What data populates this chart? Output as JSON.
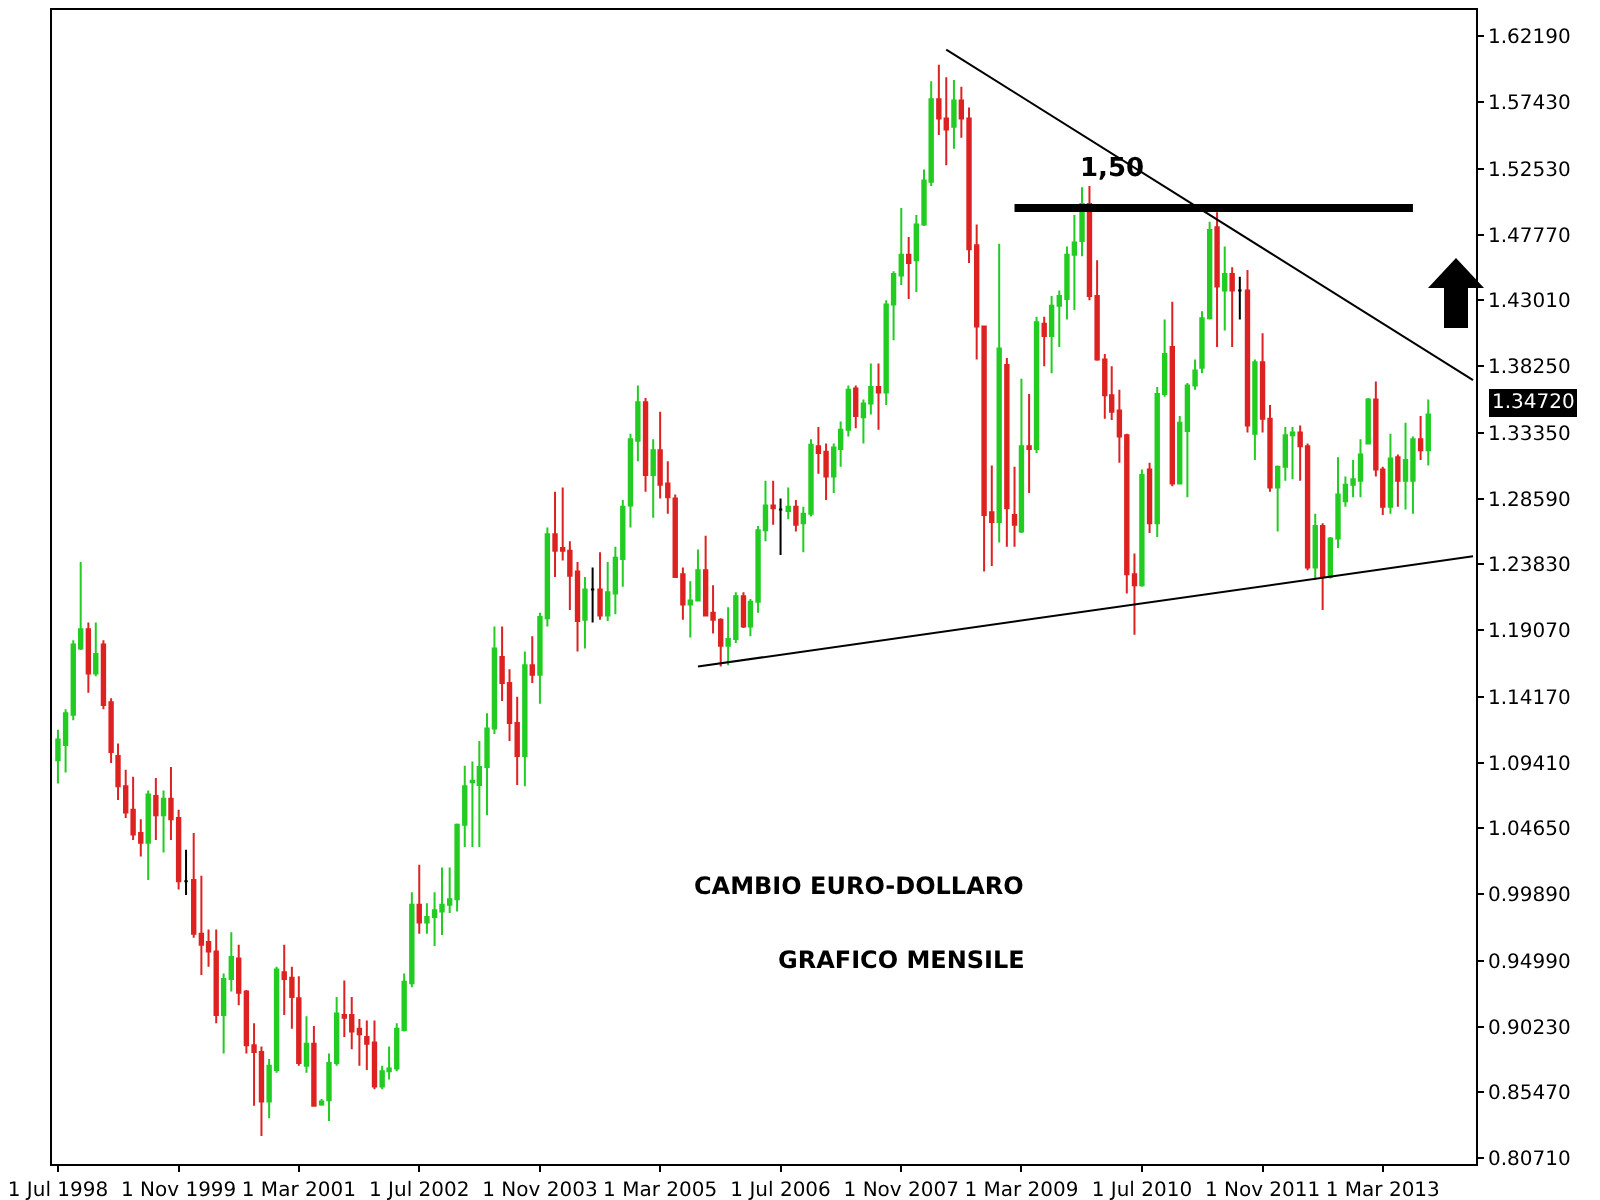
{
  "chart_data": {
    "type": "candlestick",
    "colors": [
      "#22cc22",
      "#22cc22",
      "#22cc22",
      "#22cc22",
      "#dd2222",
      "#22cc22",
      "#dd2222",
      "#dd2222",
      "#dd2222",
      "#dd2222",
      "#dd2222",
      "#dd2222",
      "#22cc22",
      "#dd2222",
      "#22cc22",
      "#dd2222",
      "#dd2222",
      "#000000",
      "#dd2222",
      "#dd2222",
      "#dd2222",
      "#dd2222",
      "#22cc22",
      "#22cc22",
      "#dd2222",
      "#dd2222",
      "#dd2222",
      "#dd2222",
      "#22cc22",
      "#22cc22",
      "#dd2222",
      "#dd2222",
      "#dd2222",
      "#22cc22",
      "#dd2222",
      "#22cc22",
      "#22cc22",
      "#22cc22",
      "#dd2222",
      "#dd2222",
      "#dd2222",
      "#dd2222",
      "#dd2222",
      "#22cc22",
      "#22cc22",
      "#22cc22",
      "#22cc22",
      "#22cc22",
      "#dd2222",
      "#22cc22",
      "#22cc22",
      "#22cc22",
      "#22cc22",
      "#22cc22",
      "#22cc22",
      "#22cc22",
      "#22cc22",
      "#22cc22",
      "#22cc22",
      "#dd2222",
      "#dd2222",
      "#dd2222",
      "#22cc22",
      "#dd2222",
      "#22cc22",
      "#22cc22",
      "#dd2222",
      "#dd2222",
      "#dd2222",
      "#dd2222",
      "#22cc22",
      "#000000",
      "#dd2222",
      "#22cc22",
      "#22cc22",
      "#22cc22",
      "#22cc22",
      "#22cc22",
      "#dd2222",
      "#22cc22",
      "#dd2222",
      "#dd2222",
      "#dd2222",
      "#dd2222",
      "#22cc22",
      "#22cc22",
      "#dd2222",
      "#dd2222",
      "#dd2222",
      "#22cc22",
      "#22cc22",
      "#dd2222",
      "#22cc22",
      "#22cc22",
      "#22cc22",
      "#dd2222",
      "#000000",
      "#22cc22",
      "#dd2222",
      "#22cc22",
      "#22cc22",
      "#dd2222",
      "#dd2222",
      "#22cc22",
      "#22cc22",
      "#22cc22",
      "#dd2222",
      "#22cc22",
      "#22cc22",
      "#dd2222",
      "#22cc22",
      "#22cc22",
      "#22cc22",
      "#dd2222",
      "#22cc22",
      "#22cc22",
      "#22cc22",
      "#dd2222",
      "#dd2222",
      "#22cc22",
      "#dd2222",
      "#dd2222",
      "#dd2222",
      "#dd2222",
      "#dd2222",
      "#22cc22",
      "#dd2222",
      "#dd2222",
      "#22cc22",
      "#dd2222",
      "#22cc22",
      "#dd2222",
      "#22cc22",
      "#22cc22",
      "#22cc22",
      "#22cc22",
      "#22cc22",
      "#dd2222",
      "#dd2222",
      "#dd2222",
      "#dd2222",
      "#dd2222",
      "#dd2222",
      "#dd2222",
      "#22cc22",
      "#dd2222",
      "#22cc22",
      "#22cc22",
      "#dd2222",
      "#22cc22",
      "#22cc22",
      "#22cc22",
      "#22cc22",
      "#22cc22",
      "#dd2222",
      "#22cc22",
      "#dd2222",
      "#000000",
      "#dd2222",
      "#22cc22",
      "#dd2222",
      "#dd2222",
      "#22cc22",
      "#22cc22",
      "#22cc22",
      "#dd2222",
      "#dd2222",
      "#22cc22",
      "#dd2222",
      "#22cc22",
      "#22cc22",
      "#22cc22",
      "#22cc22",
      "#22cc22",
      "#22cc22",
      "#dd2222",
      "#dd2222",
      "#22cc22",
      "#dd2222",
      "#22cc22",
      "#22cc22",
      "#dd2222",
      "#22cc22"
    ],
    "x": [
      "1998-07",
      "1998-08",
      "1998-09",
      "1998-10",
      "1998-11",
      "1998-12",
      "1999-01",
      "1999-02",
      "1999-03",
      "1999-04",
      "1999-05",
      "1999-06",
      "1999-07",
      "1999-08",
      "1999-09",
      "1999-10",
      "1999-11",
      "1999-12",
      "2000-01",
      "2000-02",
      "2000-03",
      "2000-04",
      "2000-05",
      "2000-06",
      "2000-07",
      "2000-08",
      "2000-09",
      "2000-10",
      "2000-11",
      "2000-12",
      "2001-01",
      "2001-02",
      "2001-03",
      "2001-04",
      "2001-05",
      "2001-06",
      "2001-07",
      "2001-08",
      "2001-09",
      "2001-10",
      "2001-11",
      "2001-12",
      "2002-01",
      "2002-02",
      "2002-03",
      "2002-04",
      "2002-05",
      "2002-06",
      "2002-07",
      "2002-08",
      "2002-09",
      "2002-10",
      "2002-11",
      "2002-12",
      "2003-01",
      "2003-02",
      "2003-03",
      "2003-04",
      "2003-05",
      "2003-06",
      "2003-07",
      "2003-08",
      "2003-09",
      "2003-10",
      "2003-11",
      "2003-12",
      "2004-01",
      "2004-02",
      "2004-03",
      "2004-04",
      "2004-05",
      "2004-06",
      "2004-07",
      "2004-08",
      "2004-09",
      "2004-10",
      "2004-11",
      "2004-12",
      "2005-01",
      "2005-02",
      "2005-03",
      "2005-04",
      "2005-05",
      "2005-06",
      "2005-07",
      "2005-08",
      "2005-09",
      "2005-10",
      "2005-11",
      "2005-12",
      "2006-01",
      "2006-02",
      "2006-03",
      "2006-04",
      "2006-05",
      "2006-06",
      "2006-07",
      "2006-08",
      "2006-09",
      "2006-10",
      "2006-11",
      "2006-12",
      "2007-01",
      "2007-02",
      "2007-03",
      "2007-04",
      "2007-05",
      "2007-06",
      "2007-07",
      "2007-08",
      "2007-09",
      "2007-10",
      "2007-11",
      "2007-12",
      "2008-01",
      "2008-02",
      "2008-03",
      "2008-04",
      "2008-05",
      "2008-06",
      "2008-07",
      "2008-08",
      "2008-09",
      "2008-10",
      "2008-11",
      "2008-12",
      "2009-01",
      "2009-02",
      "2009-03",
      "2009-04",
      "2009-05",
      "2009-06",
      "2009-07",
      "2009-08",
      "2009-09",
      "2009-10",
      "2009-11",
      "2009-12",
      "2010-01",
      "2010-02",
      "2010-03",
      "2010-04",
      "2010-05",
      "2010-06",
      "2010-07",
      "2010-08",
      "2010-09",
      "2010-10",
      "2010-11",
      "2010-12",
      "2011-01",
      "2011-02",
      "2011-03",
      "2011-04",
      "2011-05",
      "2011-06",
      "2011-07",
      "2011-08",
      "2011-09",
      "2011-10",
      "2011-11",
      "2011-12",
      "2012-01",
      "2012-02",
      "2012-03",
      "2012-04",
      "2012-05",
      "2012-06",
      "2012-07",
      "2012-08",
      "2012-09",
      "2012-10",
      "2012-11",
      "2012-12",
      "2013-01",
      "2013-02",
      "2013-03",
      "2013-04",
      "2013-05",
      "2013-06",
      "2013-07",
      "2013-08",
      "2013-09"
    ],
    "ohlc": [
      [
        1.096,
        1.118,
        1.079,
        1.111
      ],
      [
        1.107,
        1.133,
        1.087,
        1.13
      ],
      [
        1.129,
        1.183,
        1.125,
        1.18
      ],
      [
        1.177,
        1.24,
        1.176,
        1.191
      ],
      [
        1.191,
        1.196,
        1.145,
        1.159
      ],
      [
        1.159,
        1.196,
        1.157,
        1.173
      ],
      [
        1.18,
        1.183,
        1.133,
        1.136
      ],
      [
        1.138,
        1.141,
        1.094,
        1.102
      ],
      [
        1.099,
        1.108,
        1.067,
        1.077
      ],
      [
        1.077,
        1.089,
        1.054,
        1.058
      ],
      [
        1.06,
        1.084,
        1.038,
        1.042
      ],
      [
        1.043,
        1.053,
        1.026,
        1.036
      ],
      [
        1.036,
        1.074,
        1.009,
        1.071
      ],
      [
        1.07,
        1.083,
        1.038,
        1.056
      ],
      [
        1.056,
        1.074,
        1.029,
        1.068
      ],
      [
        1.068,
        1.091,
        1.038,
        1.053
      ],
      [
        1.054,
        1.06,
        1.002,
        1.008
      ],
      [
        1.008,
        1.031,
        0.998,
        1.008
      ],
      [
        1.009,
        1.043,
        0.967,
        0.97
      ],
      [
        0.97,
        1.012,
        0.94,
        0.962
      ],
      [
        0.964,
        0.973,
        0.946,
        0.957
      ],
      [
        0.957,
        0.973,
        0.905,
        0.911
      ],
      [
        0.911,
        0.941,
        0.883,
        0.937
      ],
      [
        0.937,
        0.971,
        0.928,
        0.953
      ],
      [
        0.952,
        0.962,
        0.918,
        0.927
      ],
      [
        0.928,
        0.929,
        0.883,
        0.889
      ],
      [
        0.889,
        0.905,
        0.845,
        0.884
      ],
      [
        0.884,
        0.888,
        0.823,
        0.848
      ],
      [
        0.848,
        0.879,
        0.836,
        0.874
      ],
      [
        0.871,
        0.946,
        0.869,
        0.944
      ],
      [
        0.942,
        0.962,
        0.911,
        0.937
      ],
      [
        0.938,
        0.946,
        0.901,
        0.924
      ],
      [
        0.923,
        0.939,
        0.874,
        0.876
      ],
      [
        0.874,
        0.91,
        0.869,
        0.89
      ],
      [
        0.89,
        0.903,
        0.845,
        0.845
      ],
      [
        0.846,
        0.85,
        0.845,
        0.848
      ],
      [
        0.849,
        0.883,
        0.834,
        0.876
      ],
      [
        0.876,
        0.924,
        0.874,
        0.912
      ],
      [
        0.911,
        0.936,
        0.895,
        0.909
      ],
      [
        0.911,
        0.924,
        0.886,
        0.899
      ],
      [
        0.901,
        0.908,
        0.874,
        0.897
      ],
      [
        0.895,
        0.907,
        0.871,
        0.89
      ],
      [
        0.891,
        0.907,
        0.857,
        0.859
      ],
      [
        0.859,
        0.874,
        0.857,
        0.87
      ],
      [
        0.87,
        0.888,
        0.864,
        0.872
      ],
      [
        0.872,
        0.905,
        0.87,
        0.901
      ],
      [
        0.9,
        0.941,
        0.899,
        0.935
      ],
      [
        0.934,
        1.0,
        0.931,
        0.991
      ],
      [
        0.991,
        1.02,
        0.97,
        0.978
      ],
      [
        0.978,
        0.992,
        0.97,
        0.982
      ],
      [
        0.982,
        1.0,
        0.961,
        0.987
      ],
      [
        0.986,
        1.018,
        0.969,
        0.991
      ],
      [
        0.991,
        1.018,
        0.985,
        0.995
      ],
      [
        0.995,
        1.05,
        0.986,
        1.049
      ],
      [
        1.049,
        1.092,
        1.033,
        1.077
      ],
      [
        1.08,
        1.095,
        1.033,
        1.081
      ],
      [
        1.078,
        1.11,
        1.033,
        1.091
      ],
      [
        1.091,
        1.13,
        1.056,
        1.119
      ],
      [
        1.119,
        1.193,
        1.115,
        1.177
      ],
      [
        1.171,
        1.193,
        1.139,
        1.152
      ],
      [
        1.152,
        1.162,
        1.11,
        1.123
      ],
      [
        1.123,
        1.142,
        1.078,
        1.099
      ],
      [
        1.099,
        1.175,
        1.077,
        1.165
      ],
      [
        1.165,
        1.186,
        1.152,
        1.158
      ],
      [
        1.158,
        1.203,
        1.137,
        1.2
      ],
      [
        1.199,
        1.265,
        1.193,
        1.26
      ],
      [
        1.26,
        1.291,
        1.229,
        1.248
      ],
      [
        1.25,
        1.294,
        1.241,
        1.248
      ],
      [
        1.248,
        1.255,
        1.205,
        1.23
      ],
      [
        1.233,
        1.24,
        1.175,
        1.197
      ],
      [
        1.198,
        1.229,
        1.177,
        1.22
      ],
      [
        1.22,
        1.236,
        1.196,
        1.22
      ],
      [
        1.22,
        1.247,
        1.198,
        1.201
      ],
      [
        1.201,
        1.24,
        1.197,
        1.218
      ],
      [
        1.217,
        1.251,
        1.202,
        1.243
      ],
      [
        1.242,
        1.285,
        1.222,
        1.28
      ],
      [
        1.281,
        1.333,
        1.265,
        1.329
      ],
      [
        1.328,
        1.368,
        1.313,
        1.356
      ],
      [
        1.356,
        1.359,
        1.291,
        1.303
      ],
      [
        1.303,
        1.329,
        1.272,
        1.321
      ],
      [
        1.321,
        1.349,
        1.286,
        1.296
      ],
      [
        1.297,
        1.313,
        1.275,
        1.287
      ],
      [
        1.286,
        1.289,
        1.229,
        1.229
      ],
      [
        1.231,
        1.236,
        1.198,
        1.209
      ],
      [
        1.209,
        1.226,
        1.185,
        1.212
      ],
      [
        1.212,
        1.249,
        1.212,
        1.234
      ],
      [
        1.234,
        1.259,
        1.201,
        1.201
      ],
      [
        1.203,
        1.223,
        1.188,
        1.198
      ],
      [
        1.198,
        1.199,
        1.164,
        1.179
      ],
      [
        1.179,
        1.207,
        1.165,
        1.184
      ],
      [
        1.184,
        1.218,
        1.181,
        1.215
      ],
      [
        1.215,
        1.218,
        1.192,
        1.193
      ],
      [
        1.193,
        1.213,
        1.186,
        1.211
      ],
      [
        1.211,
        1.266,
        1.203,
        1.263
      ],
      [
        1.263,
        1.299,
        1.255,
        1.281
      ],
      [
        1.281,
        1.299,
        1.267,
        1.279
      ],
      [
        1.278,
        1.286,
        1.245,
        1.278
      ],
      [
        1.277,
        1.294,
        1.271,
        1.28
      ],
      [
        1.28,
        1.285,
        1.262,
        1.267
      ],
      [
        1.268,
        1.28,
        1.247,
        1.275
      ],
      [
        1.275,
        1.329,
        1.273,
        1.325
      ],
      [
        1.324,
        1.338,
        1.304,
        1.319
      ],
      [
        1.32,
        1.326,
        1.285,
        1.302
      ],
      [
        1.302,
        1.326,
        1.29,
        1.323
      ],
      [
        1.322,
        1.342,
        1.309,
        1.336
      ],
      [
        1.336,
        1.368,
        1.331,
        1.365
      ],
      [
        1.366,
        1.368,
        1.337,
        1.346
      ],
      [
        1.345,
        1.358,
        1.326,
        1.355
      ],
      [
        1.355,
        1.384,
        1.347,
        1.367
      ],
      [
        1.367,
        1.384,
        1.336,
        1.363
      ],
      [
        1.363,
        1.43,
        1.354,
        1.427
      ],
      [
        1.427,
        1.451,
        1.401,
        1.449
      ],
      [
        1.448,
        1.497,
        1.441,
        1.463
      ],
      [
        1.463,
        1.476,
        1.431,
        1.457
      ],
      [
        1.459,
        1.492,
        1.436,
        1.485
      ],
      [
        1.485,
        1.525,
        1.484,
        1.517
      ],
      [
        1.516,
        1.589,
        1.513,
        1.576
      ],
      [
        1.576,
        1.601,
        1.55,
        1.562
      ],
      [
        1.562,
        1.592,
        1.528,
        1.554
      ],
      [
        1.556,
        1.59,
        1.54,
        1.575
      ],
      [
        1.575,
        1.585,
        1.548,
        1.562
      ],
      [
        1.562,
        1.57,
        1.457,
        1.467
      ],
      [
        1.47,
        1.485,
        1.387,
        1.411
      ],
      [
        1.411,
        1.411,
        1.233,
        1.274
      ],
      [
        1.276,
        1.31,
        1.237,
        1.269
      ],
      [
        1.269,
        1.471,
        1.254,
        1.395
      ],
      [
        1.383,
        1.388,
        1.251,
        1.279
      ],
      [
        1.274,
        1.309,
        1.251,
        1.267
      ],
      [
        1.262,
        1.373,
        1.261,
        1.324
      ],
      [
        1.324,
        1.362,
        1.29,
        1.322
      ],
      [
        1.322,
        1.418,
        1.319,
        1.414
      ],
      [
        1.413,
        1.418,
        1.382,
        1.404
      ],
      [
        1.404,
        1.433,
        1.377,
        1.426
      ],
      [
        1.426,
        1.437,
        1.396,
        1.433
      ],
      [
        1.431,
        1.469,
        1.416,
        1.463
      ],
      [
        1.463,
        1.492,
        1.423,
        1.472
      ],
      [
        1.473,
        1.512,
        1.462,
        1.5
      ],
      [
        1.5,
        1.513,
        1.43,
        1.433
      ],
      [
        1.433,
        1.459,
        1.386,
        1.387
      ],
      [
        1.387,
        1.391,
        1.344,
        1.361
      ],
      [
        1.361,
        1.382,
        1.343,
        1.349
      ],
      [
        1.35,
        1.365,
        1.312,
        1.331
      ],
      [
        1.332,
        1.333,
        1.217,
        1.231
      ],
      [
        1.231,
        1.246,
        1.187,
        1.223
      ],
      [
        1.223,
        1.307,
        1.222,
        1.303
      ],
      [
        1.307,
        1.312,
        1.261,
        1.268
      ],
      [
        1.268,
        1.367,
        1.258,
        1.362
      ],
      [
        1.362,
        1.416,
        1.36,
        1.391
      ],
      [
        1.396,
        1.429,
        1.295,
        1.297
      ],
      [
        1.297,
        1.346,
        1.297,
        1.341
      ],
      [
        1.335,
        1.37,
        1.287,
        1.368
      ],
      [
        1.368,
        1.387,
        1.365,
        1.379
      ],
      [
        1.381,
        1.422,
        1.377,
        1.417
      ],
      [
        1.417,
        1.487,
        1.416,
        1.481
      ],
      [
        1.483,
        1.494,
        1.396,
        1.44
      ],
      [
        1.437,
        1.469,
        1.408,
        1.449
      ],
      [
        1.449,
        1.454,
        1.396,
        1.437
      ],
      [
        1.437,
        1.447,
        1.416,
        1.437
      ],
      [
        1.437,
        1.452,
        1.334,
        1.339
      ],
      [
        1.333,
        1.387,
        1.314,
        1.385
      ],
      [
        1.385,
        1.406,
        1.334,
        1.344
      ],
      [
        1.344,
        1.354,
        1.291,
        1.294
      ],
      [
        1.294,
        1.31,
        1.262,
        1.309
      ],
      [
        1.309,
        1.338,
        1.299,
        1.332
      ],
      [
        1.332,
        1.338,
        1.3,
        1.334
      ],
      [
        1.334,
        1.339,
        1.299,
        1.324
      ],
      [
        1.324,
        1.326,
        1.234,
        1.236
      ],
      [
        1.236,
        1.275,
        1.227,
        1.266
      ],
      [
        1.266,
        1.268,
        1.205,
        1.229
      ],
      [
        1.229,
        1.258,
        1.228,
        1.257
      ],
      [
        1.257,
        1.316,
        1.25,
        1.289
      ],
      [
        1.284,
        1.302,
        1.28,
        1.296
      ],
      [
        1.296,
        1.314,
        1.287,
        1.3
      ],
      [
        1.299,
        1.329,
        1.287,
        1.318
      ],
      [
        1.326,
        1.359,
        1.326,
        1.358
      ],
      [
        1.358,
        1.371,
        1.302,
        1.307
      ],
      [
        1.307,
        1.309,
        1.274,
        1.28
      ],
      [
        1.28,
        1.333,
        1.275,
        1.315
      ],
      [
        1.316,
        1.318,
        1.28,
        1.299
      ],
      [
        1.299,
        1.341,
        1.278,
        1.314
      ],
      [
        1.299,
        1.331,
        1.275,
        1.329
      ],
      [
        1.329,
        1.346,
        1.314,
        1.321
      ],
      [
        1.321,
        1.358,
        1.31,
        1.347
      ]
    ],
    "series": [
      {
        "type": "line",
        "x": [
          "2008-05",
          "2014-03"
        ],
        "values": [
          1.612,
          1.372
        ],
        "color": "#000000"
      },
      {
        "type": "line",
        "x": [
          "2005-08",
          "2014-03"
        ],
        "values": [
          1.164,
          1.244
        ],
        "color": "#000000"
      },
      {
        "type": "line",
        "x": [
          "2009-02",
          "2013-07"
        ],
        "values": [
          1.497,
          1.497
        ],
        "color": "#000000"
      }
    ],
    "xlim": [
      "1998-06-07",
      "2014-03-13"
    ],
    "xticks": [
      {
        "value": "1998-07",
        "label": "1 Jul 1998"
      },
      {
        "value": "1999-11",
        "label": "1 Nov 1999"
      },
      {
        "value": "2001-03",
        "label": "1 Mar 2001"
      },
      {
        "value": "2002-07",
        "label": "1 Jul 2002"
      },
      {
        "value": "2003-11",
        "label": "1 Nov 2003"
      },
      {
        "value": "2005-03",
        "label": "1 Mar 2005"
      },
      {
        "value": "2006-07",
        "label": "1 Jul 2006"
      },
      {
        "value": "2007-11",
        "label": "1 Nov 2007"
      },
      {
        "value": "2009-03",
        "label": "1 Mar 2009"
      },
      {
        "value": "2010-07",
        "label": "1 Jul 2010"
      },
      {
        "value": "2011-11",
        "label": "1 Nov 2011"
      },
      {
        "value": "2013-03",
        "label": "1 Mar 2013"
      }
    ],
    "ylim": [
      0.8027,
      1.6408
    ],
    "yticks": [
      {
        "value": 0.8071,
        "label": "0.80710"
      },
      {
        "value": 0.8547,
        "label": "0.85470"
      },
      {
        "value": 0.9023,
        "label": "0.90230"
      },
      {
        "value": 0.9499,
        "label": "0.94990"
      },
      {
        "value": 0.9989,
        "label": "0.99890"
      },
      {
        "value": 1.0465,
        "label": "1.04650"
      },
      {
        "value": 1.0941,
        "label": "1.09410"
      },
      {
        "value": 1.1417,
        "label": "1.14170"
      },
      {
        "value": 1.1907,
        "label": "1.19070"
      },
      {
        "value": 1.2383,
        "label": "1.23830"
      },
      {
        "value": 1.2859,
        "label": "1.28590"
      },
      {
        "value": 1.3335,
        "label": "1.33350"
      },
      {
        "value": 1.3825,
        "label": "1.38250"
      },
      {
        "value": 1.4301,
        "label": "1.43010"
      },
      {
        "value": 1.4777,
        "label": "1.47770"
      },
      {
        "value": 1.5253,
        "label": "1.52530"
      },
      {
        "value": 1.5743,
        "label": "1.57430"
      },
      {
        "value": 1.6219,
        "label": "1.62190"
      }
    ],
    "annotations": [
      "CAMBIO EURO-DOLLARO",
      "GRAFICO MENSILE",
      "1,50",
      "1.34720"
    ]
  }
}
